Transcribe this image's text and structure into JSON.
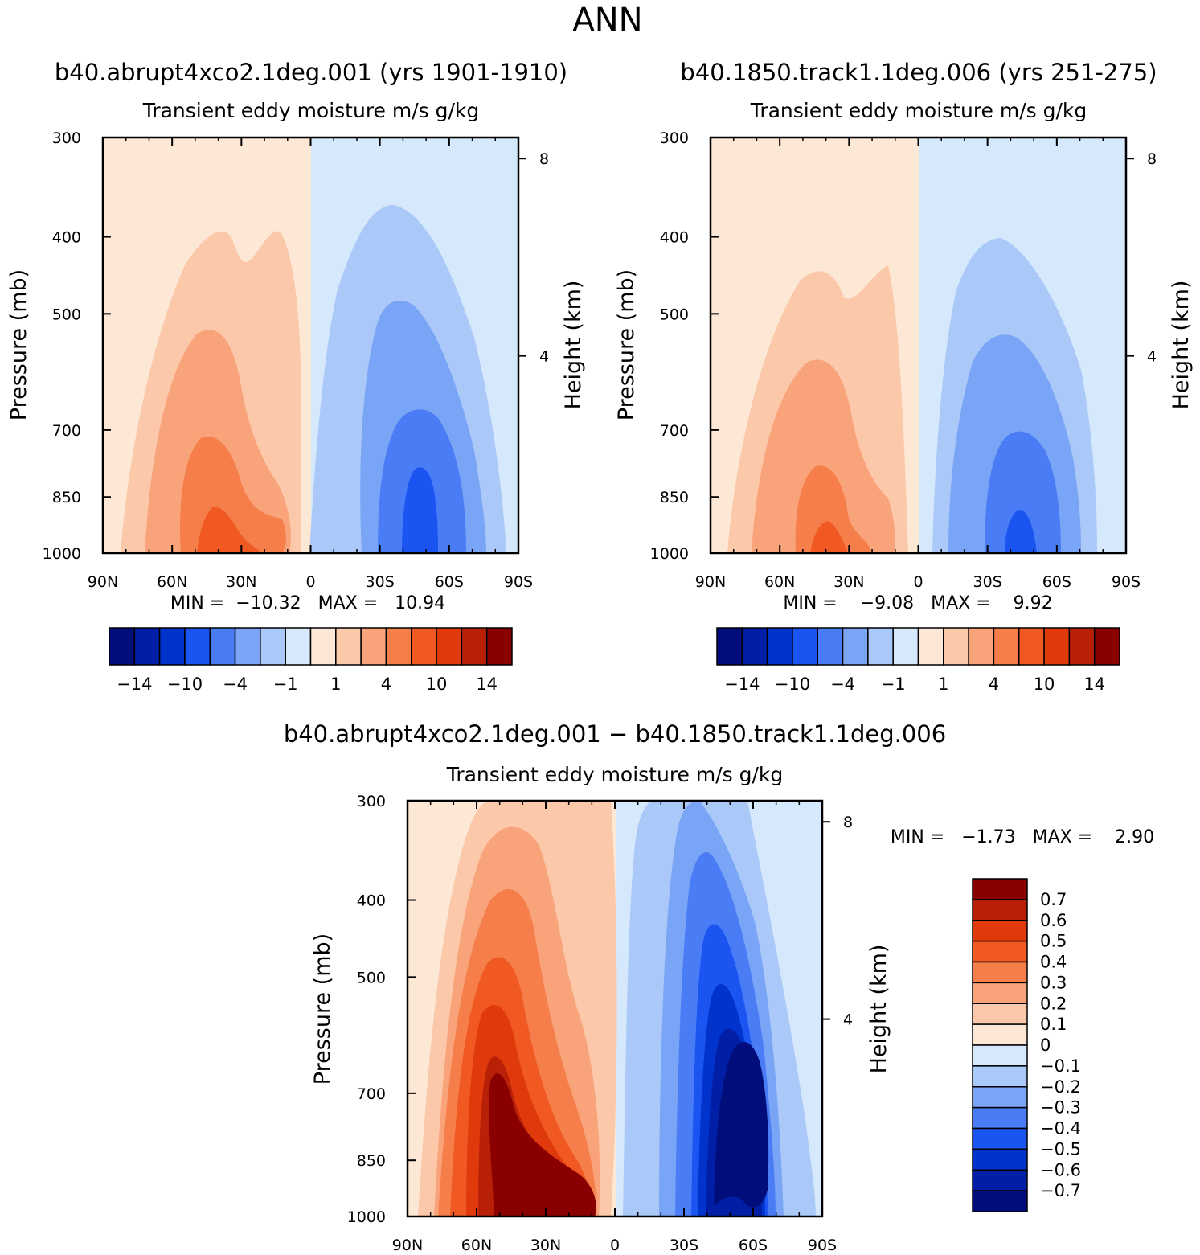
{
  "figure": {
    "title": "ANN",
    "season": "ANN"
  },
  "colors": {
    "panel_scale": [
      "#000d7a",
      "#001fa6",
      "#0033cc",
      "#1a55f2",
      "#4a7df5",
      "#7aa5f6",
      "#aac8f8",
      "#d6e8fb",
      "#fde8d6",
      "#fcc8aa",
      "#f9a37a",
      "#f57e4a",
      "#f05a22",
      "#e03a0c",
      "#b82008",
      "#8a0000"
    ],
    "diff_scale": [
      "#000d7a",
      "#001fa6",
      "#0033cc",
      "#1a55f2",
      "#4a7df5",
      "#7aa5f6",
      "#aac8f8",
      "#d6e8fb",
      "#fde8d6",
      "#fcc8aa",
      "#f9a37a",
      "#f57e4a",
      "#f05a22",
      "#e03a0c",
      "#b82008",
      "#8a0000"
    ]
  },
  "chart_data": [
    {
      "type": "heatmap",
      "id": "panel-1",
      "title": "b40.abrupt4xco2.1deg.001 (yrs 1901-1910)",
      "subtitle": "Transient eddy moisture m/s g/kg",
      "ylabel": "Pressure (mb)",
      "y2label": "Height (km)",
      "x_ticks": [
        "90N",
        "60N",
        "30N",
        "0",
        "30S",
        "60S",
        "90S"
      ],
      "y_ticks": [
        "300",
        "400",
        "500",
        "700",
        "850",
        "1000"
      ],
      "y2_ticks": [
        "8",
        "4"
      ],
      "stats": "MIN =  −10.32   MAX =   10.94",
      "min": -10.32,
      "max": 10.94,
      "colorbar_ticks": [
        "−14",
        "−10",
        "−4",
        "−1",
        "1",
        "4",
        "10",
        "14"
      ],
      "features": [
        {
          "lat": -47,
          "p": 900,
          "v": -10.32
        },
        {
          "lat": 40,
          "p": 920,
          "v": 10.94
        }
      ]
    },
    {
      "type": "heatmap",
      "id": "panel-2",
      "title": "b40.1850.track1.1deg.006 (yrs 251-275)",
      "subtitle": "Transient eddy moisture m/s g/kg",
      "ylabel": "Pressure (mb)",
      "y2label": "Height (km)",
      "x_ticks": [
        "90N",
        "60N",
        "30N",
        "0",
        "30S",
        "60S",
        "90S"
      ],
      "y_ticks": [
        "300",
        "400",
        "500",
        "700",
        "850",
        "1000"
      ],
      "y2_ticks": [
        "8",
        "4"
      ],
      "stats": "MIN =    −9.08   MAX =    9.92",
      "min": -9.08,
      "max": 9.92,
      "colorbar_ticks": [
        "−14",
        "−10",
        "−4",
        "−1",
        "1",
        "4",
        "10",
        "14"
      ],
      "features": [
        {
          "lat": -45,
          "p": 920,
          "v": -9.08
        },
        {
          "lat": 40,
          "p": 930,
          "v": 9.92
        }
      ]
    },
    {
      "type": "heatmap",
      "id": "panel-diff",
      "title": "b40.abrupt4xco2.1deg.001 − b40.1850.track1.1deg.006",
      "subtitle": "Transient eddy moisture m/s g/kg",
      "ylabel": "Pressure (mb)",
      "y2label": "Height (km)",
      "x_ticks": [
        "90N",
        "60N",
        "30N",
        "0",
        "30S",
        "60S",
        "90S"
      ],
      "y_ticks": [
        "300",
        "400",
        "500",
        "700",
        "850",
        "1000"
      ],
      "y2_ticks": [
        "8",
        "4"
      ],
      "stats": "MIN =   −1.73   MAX =    2.90",
      "min": -1.73,
      "max": 2.9,
      "colorbar_ticks": [
        "0.7",
        "0.6",
        "0.5",
        "0.4",
        "0.3",
        "0.2",
        "0.1",
        "0",
        "−0.1",
        "−0.2",
        "−0.3",
        "−0.4",
        "−0.5",
        "−0.6",
        "−0.7"
      ],
      "features": [
        {
          "lat": -58,
          "p": 780,
          "v": -1.73
        },
        {
          "lat": 40,
          "p": 880,
          "v": 2.9
        }
      ]
    }
  ]
}
